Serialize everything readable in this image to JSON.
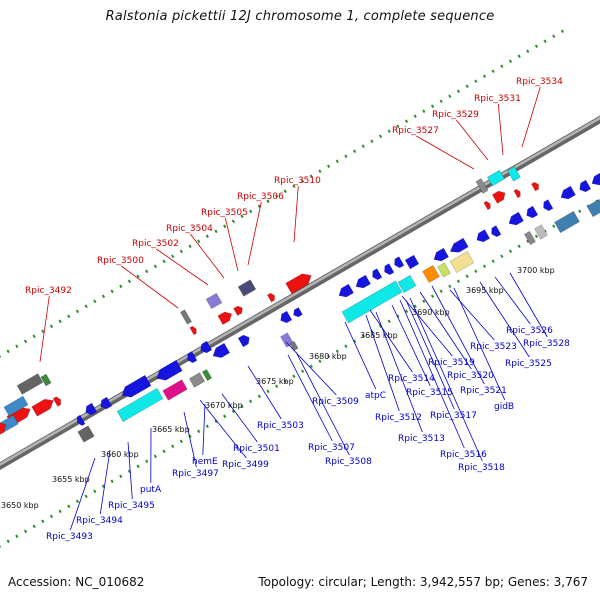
{
  "title": "Ralstonia pickettii 12J chromosome 1, complete sequence",
  "footer": {
    "accession": "Accession: NC_010682",
    "summary": "Topology: circular; Length: 3,942,557 bp; Genes: 3,767"
  },
  "colors": {
    "backbone": "#8a8a8a",
    "top_labels": "#cc0000",
    "bottom_labels": "#0000cc",
    "ticks": "#2e8b2e",
    "gene_blue": "#1515dd",
    "gene_cyan": "#10e8e8",
    "gene_red": "#ee1111"
  },
  "scale_labels": [
    "3650 kbp",
    "3655 kbp",
    "3660 kbp",
    "3665 kbp",
    "3670 kbp",
    "3675 kbp",
    "3680 kbp",
    "3685 kbp",
    "3690 kbp",
    "3695 kbp",
    "3700 kbp"
  ],
  "top_genes": [
    "Rpic_3492",
    "Rpic_3500",
    "Rpic_3502",
    "Rpic_3504",
    "Rpic_3505",
    "Rpic_3506",
    "Rpic_3510",
    "Rpic_3527",
    "Rpic_3529",
    "Rpic_3531",
    "Rpic_3534"
  ],
  "bottom_genes": [
    "Rpic_3493",
    "Rpic_3494",
    "Rpic_3495",
    "putA",
    "Rpic_3497",
    "hemE",
    "Rpic_3499",
    "Rpic_3501",
    "Rpic_3503",
    "Rpic_3507",
    "Rpic_3508",
    "Rpic_3509",
    "atpC",
    "Rpic_3512",
    "Rpic_3513",
    "Rpic_3514",
    "Rpic_3515",
    "Rpic_3516",
    "Rpic_3517",
    "Rpic_3518",
    "Rpic_3519",
    "Rpic_3520",
    "Rpic_3521",
    "gidB",
    "Rpic_3523",
    "Rpic_3525",
    "Rpic_3526",
    "Rpic_3528"
  ]
}
